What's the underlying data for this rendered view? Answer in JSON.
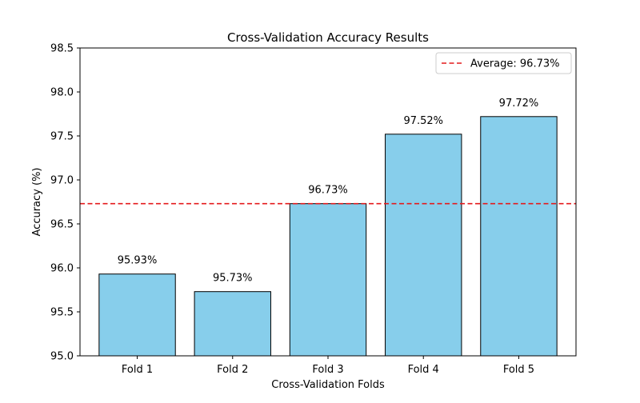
{
  "chart_data": {
    "type": "bar",
    "title": "Cross-Validation Accuracy Results",
    "xlabel": "Cross-Validation Folds",
    "ylabel": "Accuracy (%)",
    "categories": [
      "Fold 1",
      "Fold 2",
      "Fold 3",
      "Fold 4",
      "Fold 5"
    ],
    "values": [
      95.93,
      95.73,
      96.73,
      97.52,
      97.72
    ],
    "value_labels": [
      "95.93%",
      "95.73%",
      "96.73%",
      "97.52%",
      "97.72%"
    ],
    "ylim": [
      95.0,
      98.5
    ],
    "yticks": [
      95.0,
      95.5,
      96.0,
      96.5,
      97.0,
      97.5,
      98.0,
      98.5
    ],
    "ytick_labels": [
      "95.0",
      "95.5",
      "96.0",
      "96.5",
      "97.0",
      "97.5",
      "98.0",
      "98.5"
    ],
    "average": 96.73,
    "legend": {
      "position": "top-right",
      "entries": [
        "Average: 96.73%"
      ]
    },
    "grid": false,
    "colors": {
      "bar_fill": "#87ceeb",
      "bar_edge": "#000000",
      "average_line": "#e41a1c"
    }
  }
}
